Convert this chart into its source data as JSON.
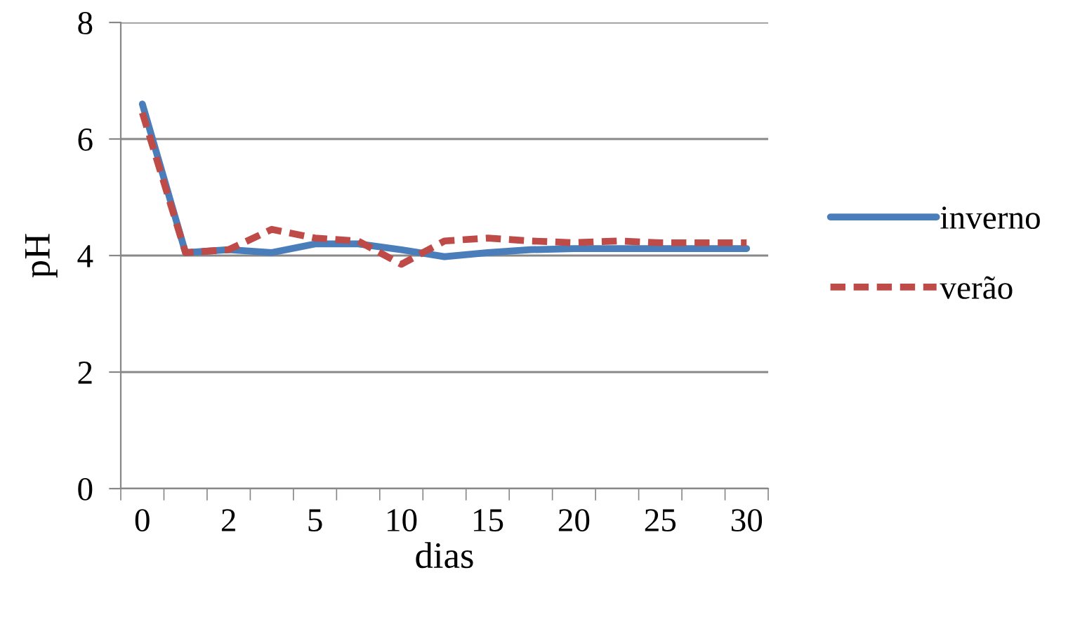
{
  "chart_data": {
    "type": "line",
    "xlabel": "dias",
    "ylabel": "pH",
    "categories": [
      "0",
      null,
      "2",
      null,
      "5",
      null,
      "10",
      null,
      "15",
      null,
      "20",
      null,
      "25",
      null,
      "30"
    ],
    "series": [
      {
        "name": "inverno",
        "color": "#4a7ebb",
        "line_style": "solid",
        "values": [
          6.6,
          4.05,
          4.1,
          4.05,
          4.2,
          4.2,
          4.1,
          3.98,
          4.05,
          4.1,
          4.12,
          4.12,
          4.12,
          4.12,
          4.12
        ]
      },
      {
        "name": "verão",
        "color": "#be4b48",
        "line_style": "dashed",
        "values": [
          6.45,
          4.05,
          4.1,
          4.45,
          4.3,
          4.25,
          3.85,
          4.25,
          4.3,
          4.25,
          4.22,
          4.25,
          4.22,
          4.22,
          4.22
        ]
      }
    ],
    "ylim": [
      0,
      8
    ],
    "yticks": [
      0,
      2,
      4,
      6,
      8
    ],
    "grid": "y",
    "legend": "right",
    "marker": "none"
  }
}
